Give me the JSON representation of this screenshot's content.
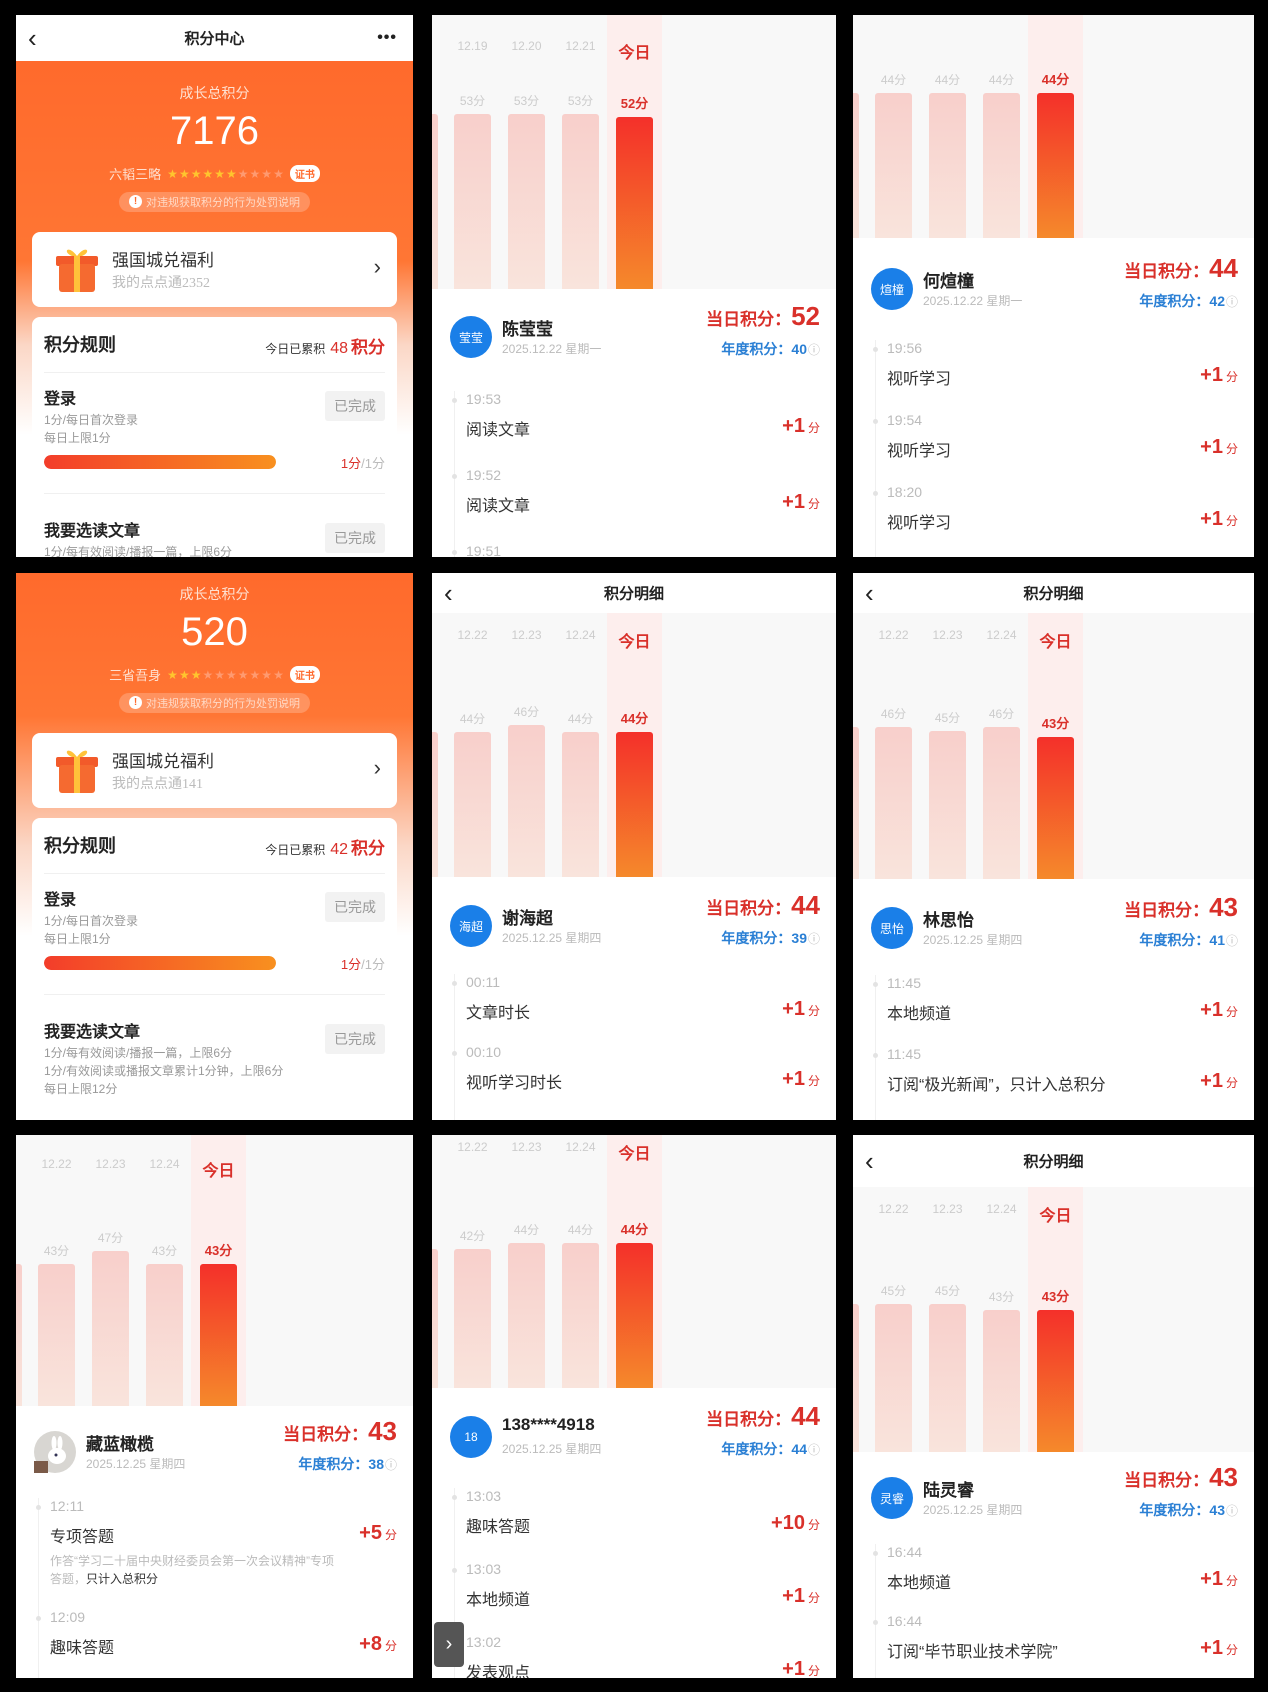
{
  "panels": [
    {
      "type": "points",
      "header": {
        "title": "积分中心",
        "back_icon": "chevron-left-icon",
        "more_icon": "more-dots-icon"
      },
      "total_label": "成长总积分",
      "total": "7176",
      "rank_title": "六韬三略",
      "stars_filled": 6,
      "stars_total": 10,
      "cert": "证书",
      "warning": "对违规获取积分的行为处罚说明",
      "reward": {
        "title": "强国城兑福利",
        "subtitle": "我的点点通2352"
      },
      "rules": {
        "title": "积分规则",
        "today_label": "今日已累积",
        "today_value": "48",
        "today_unit": "积分",
        "items": [
          {
            "name": "登录",
            "desc": [
              "1分/每日首次登录",
              "每日上限1分"
            ],
            "button": "已完成",
            "progress": {
              "earned": "1分",
              "limit": "/1分",
              "fraction": 1.0
            }
          },
          {
            "name": "我要选读文章",
            "desc": [
              "1分/每有效阅读/播报一篇，上限6分"
            ],
            "button": "已完成"
          }
        ]
      }
    },
    {
      "type": "detail",
      "chart": {
        "dates": [
          "12.19",
          "12.20",
          "12.21",
          "今日"
        ],
        "values": [
          53,
          53,
          53,
          52
        ],
        "unit": "分"
      },
      "user": {
        "avatar": "莹莹",
        "name": "陈莹莹",
        "date": "2025.12.22 星期一",
        "daily_label": "当日积分：",
        "daily": "52",
        "annual_label": "年度积分：",
        "annual": "40"
      },
      "entries": [
        {
          "time": "19:53",
          "title": "阅读文章",
          "points": "+1",
          "unit": "分"
        },
        {
          "time": "19:52",
          "title": "阅读文章",
          "points": "+1",
          "unit": "分"
        },
        {
          "time": "19:51"
        }
      ]
    },
    {
      "type": "detail",
      "chart": {
        "values": [
          44,
          44,
          44,
          44
        ],
        "unit": "分"
      },
      "user": {
        "avatar": "煊橦",
        "name": "何煊橦",
        "date": "2025.12.22 星期一",
        "daily_label": "当日积分：",
        "daily": "44",
        "annual_label": "年度积分：",
        "annual": "42"
      },
      "entries": [
        {
          "time": "19:56",
          "title": "视听学习",
          "points": "+1",
          "unit": "分"
        },
        {
          "time": "19:54",
          "title": "视听学习",
          "points": "+1",
          "unit": "分"
        },
        {
          "time": "18:20",
          "title": "视听学习",
          "points": "+1",
          "unit": "分"
        }
      ]
    },
    {
      "type": "points",
      "total_label": "成长总积分",
      "total": "520",
      "rank_title": "三省吾身",
      "stars_filled": 3,
      "stars_total": 10,
      "cert": "证书",
      "warning": "对违规获取积分的行为处罚说明",
      "reward": {
        "title": "强国城兑福利",
        "subtitle": "我的点点通141"
      },
      "rules": {
        "title": "积分规则",
        "today_label": "今日已累积",
        "today_value": "42",
        "today_unit": "积分",
        "items": [
          {
            "name": "登录",
            "desc": [
              "1分/每日首次登录",
              "每日上限1分"
            ],
            "button": "已完成",
            "progress": {
              "earned": "1分",
              "limit": "/1分",
              "fraction": 1.0
            }
          },
          {
            "name": "我要选读文章",
            "desc": [
              "1分/每有效阅读/播报一篇，上限6分",
              "1分/有效阅读或播报文章累计1分钟，上限6分",
              "每日上限12分"
            ],
            "button": "已完成"
          }
        ]
      }
    },
    {
      "type": "detail",
      "header": {
        "title": "积分明细"
      },
      "chart": {
        "dates": [
          "12.22",
          "12.23",
          "12.24",
          "今日"
        ],
        "values": [
          44,
          46,
          44,
          44
        ],
        "unit": "分"
      },
      "user": {
        "avatar": "海超",
        "name": "谢海超",
        "date": "2025.12.25 星期四",
        "daily_label": "当日积分：",
        "daily": "44",
        "annual_label": "年度积分：",
        "annual": "39"
      },
      "entries": [
        {
          "time": "00:11",
          "title": "文章时长",
          "points": "+1",
          "unit": "分"
        },
        {
          "time": "00:10",
          "title": "视听学习时长",
          "points": "+1",
          "unit": "分"
        }
      ]
    },
    {
      "type": "detail",
      "header": {
        "title": "积分明细"
      },
      "chart": {
        "dates": [
          "12.22",
          "12.23",
          "12.24",
          "今日"
        ],
        "values": [
          46,
          45,
          46,
          43
        ],
        "unit": "分"
      },
      "user": {
        "avatar": "思怡",
        "name": "林思怡",
        "date": "2025.12.25 星期四",
        "daily_label": "当日积分：",
        "daily": "43",
        "annual_label": "年度积分：",
        "annual": "41"
      },
      "entries": [
        {
          "time": "11:45",
          "title": "本地频道",
          "points": "+1",
          "unit": "分"
        },
        {
          "time": "11:45",
          "title": "订阅“极光新闻”，只计入总积分",
          "points": "+1",
          "unit": "分"
        }
      ]
    },
    {
      "type": "detail",
      "chart": {
        "dates": [
          "12.22",
          "12.23",
          "12.24",
          "今日"
        ],
        "values": [
          43,
          47,
          43,
          43
        ],
        "unit": "分"
      },
      "user": {
        "avatar_photo": true,
        "name": "藏蓝橄榄",
        "date": "2025.12.25 星期四",
        "daily_label": "当日积分：",
        "daily": "43",
        "annual_label": "年度积分：",
        "annual": "38"
      },
      "entries": [
        {
          "time": "12:11",
          "title": "专项答题",
          "points": "+5",
          "unit": "分",
          "desc": "作答“学习二十届中央财经委员会第一次会议精神”专项答题，",
          "desc_bold": "只计入总积分"
        },
        {
          "time": "12:09",
          "title": "趣味答题",
          "points": "+8",
          "unit": "分"
        }
      ]
    },
    {
      "type": "detail",
      "chart": {
        "dates": [
          "12.22",
          "12.23",
          "12.24",
          "今日"
        ],
        "values": [
          42,
          44,
          44,
          44
        ],
        "unit": "分"
      },
      "user": {
        "avatar": "18",
        "name": "138****4918",
        "date": "2025.12.25 星期四",
        "daily_label": "当日积分：",
        "daily": "44",
        "annual_label": "年度积分：",
        "annual": "44"
      },
      "entries": [
        {
          "time": "13:03",
          "title": "趣味答题",
          "points": "+10",
          "unit": "分"
        },
        {
          "time": "13:03",
          "title": "本地频道",
          "points": "+1",
          "unit": "分"
        },
        {
          "time": "13:02",
          "title": "发表观点",
          "points": "+1",
          "unit": "分"
        }
      ],
      "side_button": "›"
    },
    {
      "type": "detail",
      "header": {
        "title": "积分明细"
      },
      "chart": {
        "dates": [
          "12.22",
          "12.23",
          "12.24",
          "今日"
        ],
        "values": [
          45,
          45,
          43,
          43
        ],
        "unit": "分"
      },
      "user": {
        "avatar": "灵睿",
        "name": "陆灵睿",
        "date": "2025.12.25 星期四",
        "daily_label": "当日积分：",
        "daily": "43",
        "annual_label": "年度积分：",
        "annual": "43"
      },
      "entries": [
        {
          "time": "16:44",
          "title": "本地频道",
          "points": "+1",
          "unit": "分"
        },
        {
          "time": "16:44",
          "title": "订阅“毕节职业技术学院”",
          "points": "+1",
          "unit": "分"
        }
      ]
    }
  ],
  "colors": {
    "accent_red": "#d9302a",
    "orange": "#ff6a2c",
    "blue": "#1a7fe8",
    "annual_blue": "#2a7fd4"
  }
}
